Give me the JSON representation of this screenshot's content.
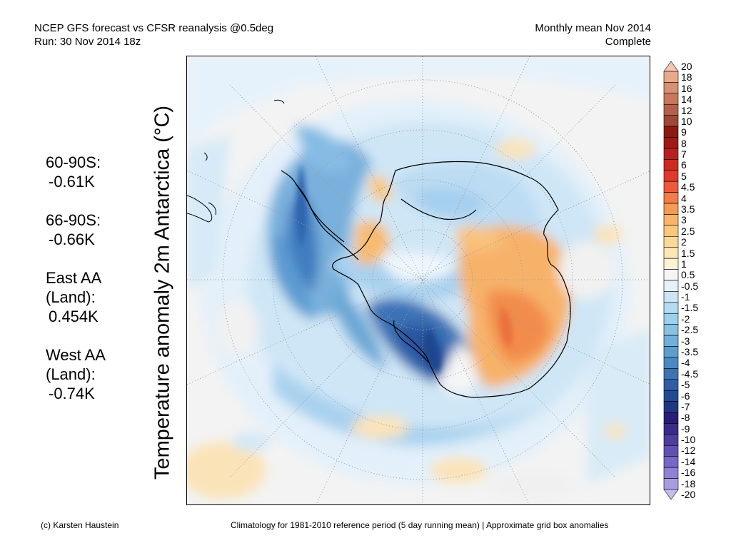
{
  "header": {
    "title_line1": "NCEP GFS forecast vs CFSR reanalysis @0.5deg",
    "title_line2": "Run: 30 Nov 2014 18z",
    "right_line1": "Monthly mean Nov 2014",
    "right_line2": "Complete"
  },
  "ylabel": "Temperature anomaly 2m Antarctica (°C)",
  "stats": [
    {
      "label": "60-90S:",
      "value": "-0.61K"
    },
    {
      "label": "66-90S:",
      "value": "-0.66K"
    },
    {
      "label": "East AA\n(Land):",
      "value": "0.454K"
    },
    {
      "label": "West AA\n(Land):",
      "value": "-0.74K"
    }
  ],
  "colorbar": {
    "labels": [
      "20",
      "18",
      "16",
      "14",
      "12",
      "10",
      "9",
      "8",
      "7",
      "6",
      "5",
      "4.5",
      "4",
      "3.5",
      "3",
      "2.5",
      "2",
      "1.5",
      "1",
      "0.5",
      "-0.5",
      "-1",
      "-1.5",
      "-2",
      "-2.5",
      "-3",
      "-3.5",
      "-4",
      "-4.5",
      "-5",
      "-6",
      "-7",
      "-8",
      "-9",
      "-10",
      "-12",
      "-14",
      "-16",
      "-18",
      "-20"
    ],
    "colors": [
      "#f6c6b0",
      "#e8a98c",
      "#d88f72",
      "#c8785c",
      "#b4604a",
      "#a04836",
      "#8c1a10",
      "#a01a14",
      "#b82020",
      "#cc2a22",
      "#e0392c",
      "#ec5a3a",
      "#f47c48",
      "#f69a58",
      "#f8b468",
      "#f9c87c",
      "#fad898",
      "#fbe6b4",
      "#fdf2d4",
      "#f5f5f5",
      "#e6f2fb",
      "#cce6f6",
      "#b3dbf1",
      "#9cd0ec",
      "#87c1e4",
      "#72b0da",
      "#5e9ecf",
      "#4c89c2",
      "#3c74b4",
      "#2e5ea4",
      "#254a94",
      "#203884",
      "#261e76",
      "#3a2b8a",
      "#4e3c9e",
      "#6450b2",
      "#7a66c4",
      "#9280d4",
      "#ab9ce2",
      "#c6bcee"
    ]
  },
  "footer": {
    "left": "(c) Karsten Haustein",
    "right": "Climatology for 1981-2010 reference period (5 day running mean) | Approximate grid box anomalies"
  }
}
